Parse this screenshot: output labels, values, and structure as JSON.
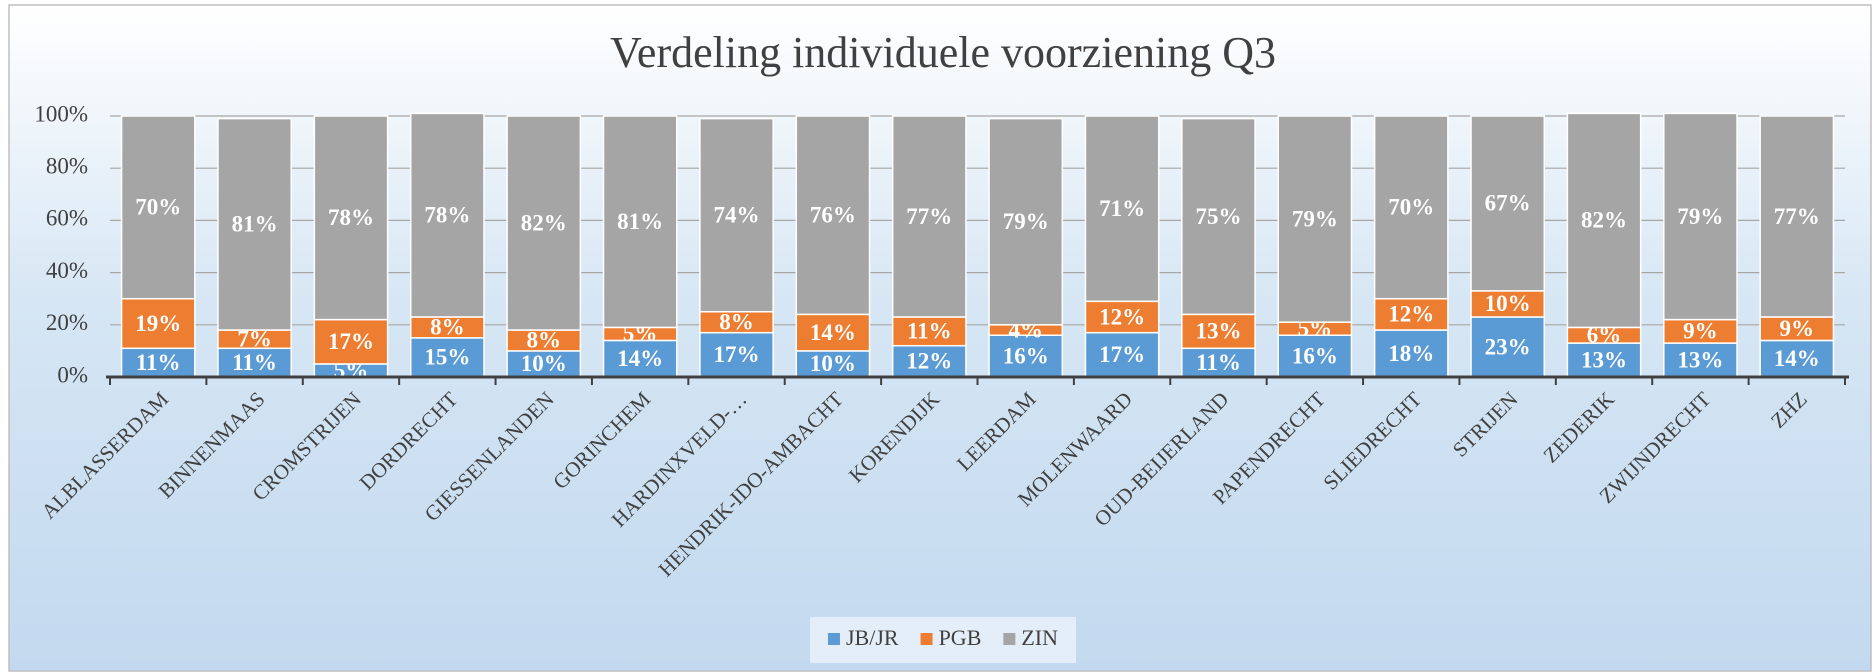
{
  "chart_data": {
    "type": "stacked_bar",
    "title": "Verdeling individuele voorziening Q3",
    "categories": [
      "ALBLASSERDAM",
      "BINNENMAAS",
      "CROMSTRIJEN",
      "DORDRECHT",
      "GIESSENLANDEN",
      "GORINCHEM",
      "HARDINXVELD-…",
      "HENDRIK-IDO-AMBACHT",
      "KORENDIJK",
      "LEERDAM",
      "MOLENWAARD",
      "OUD-BEIJERLAND",
      "PAPENDRECHT",
      "SLIEDRECHT",
      "STRIJEN",
      "ZEDERIK",
      "ZWIJNDRECHT",
      "ZHZ"
    ],
    "series": [
      {
        "name": "JB/JR",
        "color": "#5b9bd5",
        "values": [
          11,
          11,
          5,
          15,
          10,
          14,
          17,
          10,
          12,
          16,
          17,
          11,
          16,
          18,
          23,
          13,
          13,
          14
        ],
        "value_labels": [
          "11%",
          "11%",
          "5%",
          "15%",
          "10%",
          "14%",
          "17%",
          "10%",
          "12%",
          "16%",
          "17%",
          "11%",
          "16%",
          "18%",
          "23%",
          "13%",
          "13%",
          "14%"
        ]
      },
      {
        "name": "PGB",
        "color": "#ed7d31",
        "values": [
          19,
          7,
          17,
          8,
          8,
          5,
          8,
          14,
          11,
          4,
          12,
          13,
          5,
          12,
          10,
          6,
          9,
          9
        ],
        "value_labels": [
          "19%",
          "7%",
          "17%",
          "8%",
          "8%",
          "5%",
          "8%",
          "14%",
          "11%",
          "4%",
          "12%",
          "13%",
          "5%",
          "12%",
          "10%",
          "6%",
          "9%",
          "9%"
        ]
      },
      {
        "name": "ZIN",
        "color": "#a5a5a5",
        "values": [
          70,
          81,
          78,
          78,
          82,
          81,
          74,
          76,
          77,
          79,
          71,
          75,
          79,
          70,
          67,
          82,
          79,
          77
        ],
        "value_labels": [
          "70%",
          "81%",
          "78%",
          "78%",
          "82%",
          "81%",
          "74%",
          "76%",
          "77%",
          "79%",
          "71%",
          "75%",
          "79%",
          "70%",
          "67%",
          "82%",
          "79%",
          "77%"
        ]
      }
    ],
    "ylim": [
      0,
      100
    ],
    "yticks": [
      {
        "value": 0,
        "label": "0%"
      },
      {
        "value": 20,
        "label": "20%"
      },
      {
        "value": 40,
        "label": "40%"
      },
      {
        "value": 60,
        "label": "60%"
      },
      {
        "value": 80,
        "label": "80%"
      },
      {
        "value": 100,
        "label": "100%"
      }
    ],
    "grid": true,
    "legend": "bottom"
  }
}
